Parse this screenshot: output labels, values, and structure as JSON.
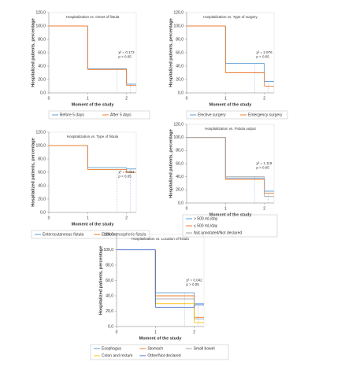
{
  "chart_data": [
    {
      "type": "step",
      "title": "Hospitalization vs. Onset of fistula",
      "x_label": "Moment of the study",
      "y_label": "Hospitalized patients, percentage",
      "x": [
        0,
        1,
        2
      ],
      "xlim": [
        0,
        2.25
      ],
      "xticks": [
        0,
        1,
        2
      ],
      "ylim": [
        0,
        120
      ],
      "yticks": [
        {
          "value": 0,
          "label": "0,0"
        },
        {
          "value": 20,
          "label": "20,0"
        },
        {
          "value": 40,
          "label": "40,0"
        },
        {
          "value": 60,
          "label": "60,0"
        },
        {
          "value": 80,
          "label": "80,0"
        },
        {
          "value": 100,
          "label": "100,0"
        },
        {
          "value": 120,
          "label": "120,0"
        }
      ],
      "series": [
        {
          "name": "Before 5 days",
          "color": "#5b9bd5",
          "values": [
            100,
            36,
            13
          ]
        },
        {
          "name": "After 5 days",
          "color": "#ed7d31",
          "values": [
            100,
            35,
            11
          ]
        }
      ],
      "annotations": [
        "χ² = 0.172",
        "p > 0.05"
      ]
    },
    {
      "type": "step",
      "title": "Hospitalization vs. Type of surgery",
      "x_label": "Moment of the study",
      "y_label": "Hospitalized patients, percentage",
      "x": [
        0,
        1,
        2
      ],
      "xlim": [
        0,
        2.25
      ],
      "xticks": [
        0,
        1,
        2
      ],
      "ylim": [
        0,
        120
      ],
      "yticks": [
        {
          "value": 0,
          "label": "0,0"
        },
        {
          "value": 20,
          "label": "20,0"
        },
        {
          "value": 40,
          "label": "40,0"
        },
        {
          "value": 60,
          "label": "60,0"
        },
        {
          "value": 80,
          "label": "80,0"
        },
        {
          "value": 100,
          "label": "100,0"
        },
        {
          "value": 120,
          "label": "120,0"
        }
      ],
      "series": [
        {
          "name": "Elective surgery",
          "color": "#5b9bd5",
          "values": [
            100,
            44,
            17
          ]
        },
        {
          "name": "Emergency surgery",
          "color": "#ed7d31",
          "values": [
            100,
            30,
            10
          ]
        }
      ],
      "annotations": [
        "χ² = 2.976",
        "p > 0.05"
      ]
    },
    {
      "type": "step",
      "title": "Hospitalization vs. Type of fistula",
      "x_label": "Moment of the study",
      "y_label": "Hospitalized patients, percentage",
      "x": [
        0,
        1,
        2
      ],
      "xlim": [
        0,
        2.25
      ],
      "xticks": [
        0,
        1,
        2
      ],
      "ylim": [
        0,
        120
      ],
      "yticks": [
        {
          "value": 0,
          "label": "0,0"
        },
        {
          "value": 20,
          "label": "20,0"
        },
        {
          "value": 40,
          "label": "40,0"
        },
        {
          "value": 60,
          "label": "60,0"
        },
        {
          "value": 80,
          "label": "80,0"
        },
        {
          "value": 100,
          "label": "100,0"
        },
        {
          "value": 120,
          "label": "120,0"
        }
      ],
      "series": [
        {
          "name": "Enterocutaneous fistula",
          "color": "#5b9bd5",
          "values": [
            100,
            67,
            65
          ]
        },
        {
          "name": "Enteroatmospheric fistula",
          "color": "#ed7d31",
          "values": [
            100,
            64,
            60
          ]
        }
      ],
      "annotations": [
        "χ² = 0.061",
        "p > 0.05"
      ]
    },
    {
      "type": "step",
      "title": "Hospitalization vs. Fistula output",
      "x_label": "Moment of the study",
      "y_label": "Hospitalized patients, percentage",
      "x": [
        0,
        1,
        2
      ],
      "xlim": [
        0,
        2.25
      ],
      "xticks": [
        0,
        1,
        2
      ],
      "ylim": [
        0,
        120
      ],
      "yticks": [
        {
          "value": 0,
          "label": "0,0"
        },
        {
          "value": 20,
          "label": "20,0"
        },
        {
          "value": 40,
          "label": "40,0"
        },
        {
          "value": 60,
          "label": "60,0"
        },
        {
          "value": 80,
          "label": "80,0"
        },
        {
          "value": 100,
          "label": "100,0"
        },
        {
          "value": 120,
          "label": "120,0"
        }
      ],
      "series": [
        {
          "name": "> 500 mL/day",
          "color": "#5b9bd5",
          "values": [
            100,
            38,
            18
          ]
        },
        {
          "name": "≤ 500 mL/day",
          "color": "#ed7d31",
          "values": [
            100,
            36,
            15
          ]
        },
        {
          "name": "Not annotated/Not declared",
          "color": "#a5a5a5",
          "values": [
            100,
            40,
            10
          ]
        }
      ],
      "annotations": [
        "χ² = 1.119",
        "p > 0.05"
      ]
    },
    {
      "type": "step",
      "title": "Hospitalization vs. Location of fistula",
      "x_label": "Moment of the study",
      "y_label": "Hospitalized patients, percentage",
      "x": [
        0,
        1,
        2
      ],
      "xlim": [
        0,
        2.25
      ],
      "xticks": [
        0,
        1,
        2
      ],
      "ylim": [
        0,
        120
      ],
      "yticks": [
        {
          "value": 0,
          "label": "0,0"
        },
        {
          "value": 20,
          "label": "20,0"
        },
        {
          "value": 40,
          "label": "40,0"
        },
        {
          "value": 60,
          "label": "60,0"
        },
        {
          "value": 80,
          "label": "80,0"
        },
        {
          "value": 100,
          "label": "100,0"
        },
        {
          "value": 120,
          "label": "120,0"
        }
      ],
      "series": [
        {
          "name": "Esophagus",
          "color": "#5b9bd5",
          "values": [
            100,
            44,
            30
          ]
        },
        {
          "name": "Stomach",
          "color": "#ed7d31",
          "values": [
            100,
            40,
            12
          ]
        },
        {
          "name": "Small bowel",
          "color": "#a5a5a5",
          "values": [
            100,
            36,
            10
          ]
        },
        {
          "name": "Colon and rectum",
          "color": "#ffc000",
          "values": [
            100,
            30,
            5
          ]
        },
        {
          "name": "Other/Not declared",
          "color": "#4472c4",
          "values": [
            100,
            25,
            28
          ]
        }
      ],
      "annotations": [
        "χ² = 0.042",
        "p > 0.05"
      ]
    }
  ]
}
